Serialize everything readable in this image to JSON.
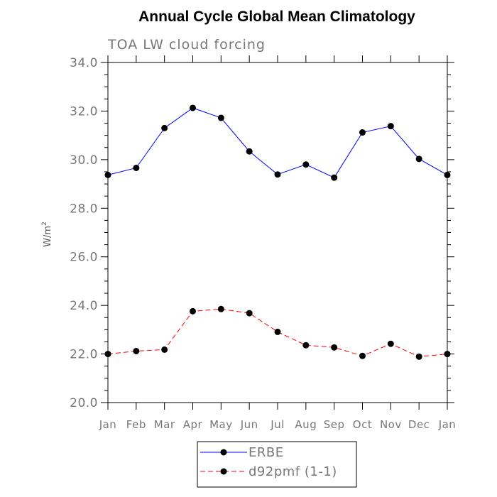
{
  "chart_data": {
    "type": "line",
    "title": "Annual Cycle Global Mean Climatology",
    "subtitle": "TOA LW cloud forcing",
    "ylabel_base": "W/m",
    "ylabel_sup": "2",
    "xlabel": "",
    "categories": [
      "Jan",
      "Feb",
      "Mar",
      "Apr",
      "May",
      "Jun",
      "Jul",
      "Aug",
      "Sep",
      "Oct",
      "Nov",
      "Dec",
      "Jan"
    ],
    "ylim": [
      20.0,
      34.0
    ],
    "yticks": [
      "20.0",
      "22.0",
      "24.0",
      "26.0",
      "28.0",
      "30.0",
      "32.0",
      "34.0"
    ],
    "grid": false,
    "legend_position": "bottom-center",
    "series": [
      {
        "name": "ERBE",
        "color": "#0000ff",
        "dashed": false,
        "values": [
          29.37,
          29.66,
          31.3,
          32.13,
          31.72,
          30.34,
          29.39,
          29.8,
          29.26,
          31.12,
          31.38,
          30.03,
          29.37
        ]
      },
      {
        "name": "d92pmf (1-1)",
        "color": "#ff0000",
        "dashed": true,
        "values": [
          22.0,
          22.12,
          22.18,
          23.76,
          23.85,
          23.68,
          22.91,
          22.36,
          22.27,
          21.92,
          22.42,
          21.89,
          22.0
        ]
      }
    ]
  }
}
